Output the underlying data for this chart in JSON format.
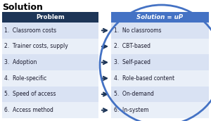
{
  "title": "Solution",
  "col1_header": "Problem",
  "col2_header": "Solution = uP",
  "problems": [
    "1.  Classroom costs",
    "2.  Trainer costs, supply",
    "3.  Adoption",
    "4.  Role-specific",
    "5.  Speed of access",
    "6.  Access method"
  ],
  "solutions": [
    "1.  No classrooms",
    "2.  CBT-based",
    "3.  Self-paced",
    "4.  Role-based content",
    "5.  On-demand",
    "6.  In-system"
  ],
  "header_bg": "#1d3557",
  "header_fg": "#ffffff",
  "sol_header_bg": "#4472c4",
  "sol_header_fg": "#ffffff",
  "row_alt1_bg": "#d9e2f3",
  "row_alt2_bg": "#e9eff8",
  "arrow_color": "#1d3557",
  "circle_color": "#4472c4",
  "title_color": "#000000",
  "text_color": "#1a1a2e",
  "fig_bg": "#ffffff",
  "title_fontsize": 9,
  "header_fontsize": 6.2,
  "row_fontsize": 5.5
}
